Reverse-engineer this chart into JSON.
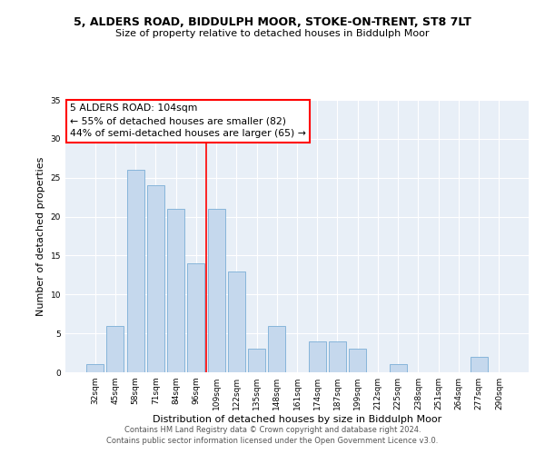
{
  "title1": "5, ALDERS ROAD, BIDDULPH MOOR, STOKE-ON-TRENT, ST8 7LT",
  "title2": "Size of property relative to detached houses in Biddulph Moor",
  "xlabel": "Distribution of detached houses by size in Biddulph Moor",
  "ylabel": "Number of detached properties",
  "categories": [
    "32sqm",
    "45sqm",
    "58sqm",
    "71sqm",
    "84sqm",
    "96sqm",
    "109sqm",
    "122sqm",
    "135sqm",
    "148sqm",
    "161sqm",
    "174sqm",
    "187sqm",
    "199sqm",
    "212sqm",
    "225sqm",
    "238sqm",
    "251sqm",
    "264sqm",
    "277sqm",
    "290sqm"
  ],
  "values": [
    1,
    6,
    26,
    24,
    21,
    14,
    21,
    13,
    3,
    6,
    0,
    4,
    4,
    3,
    0,
    1,
    0,
    0,
    0,
    2,
    0
  ],
  "bar_color": "#c5d8ed",
  "bar_edge_color": "#7aaed6",
  "vline_x_index": 6,
  "vline_color": "red",
  "annotation_text": "5 ALDERS ROAD: 104sqm\n← 55% of detached houses are smaller (82)\n44% of semi-detached houses are larger (65) →",
  "annotation_box_color": "white",
  "annotation_box_edgecolor": "red",
  "background_color": "#e8eff7",
  "grid_color": "white",
  "ylim": [
    0,
    35
  ],
  "yticks": [
    0,
    5,
    10,
    15,
    20,
    25,
    30,
    35
  ],
  "footer1": "Contains HM Land Registry data © Crown copyright and database right 2024.",
  "footer2": "Contains public sector information licensed under the Open Government Licence v3.0."
}
